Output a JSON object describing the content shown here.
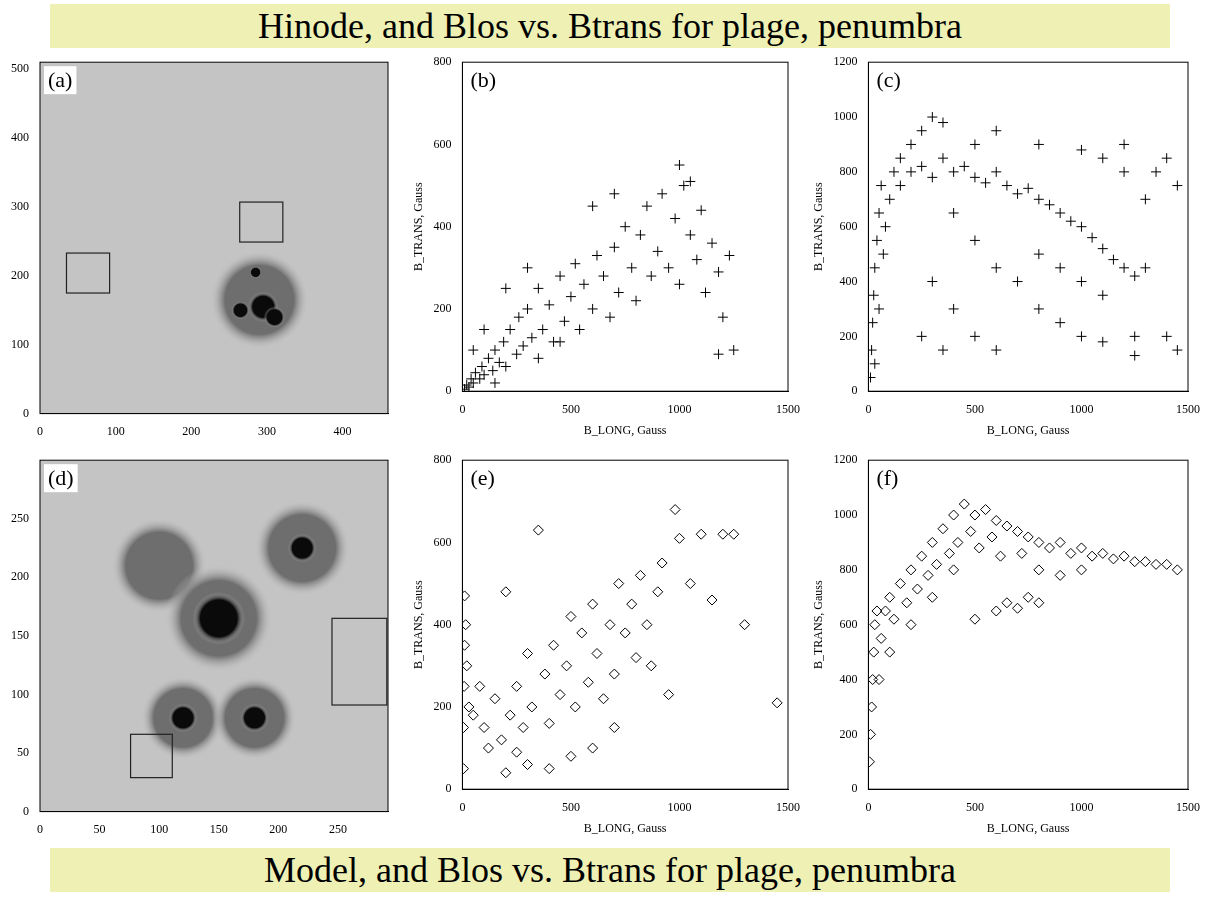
{
  "caption_top": "Hinode, and Blos vs. Btrans for plage, penumbra",
  "caption_bottom": "Model, and Blos vs. Btrans for plage, penumbra",
  "chart_data": [
    {
      "type": "image",
      "panel_label": "(a)",
      "xlim": [
        0,
        460
      ],
      "ylim": [
        0,
        510
      ],
      "xticks": [
        0,
        100,
        200,
        300,
        400
      ],
      "yticks": [
        0,
        100,
        200,
        300,
        400,
        500
      ],
      "penumbrae": [
        [
          290,
          165,
          65
        ]
      ],
      "umbrae": [
        [
          265,
          150,
          12
        ],
        [
          295,
          155,
          20
        ],
        [
          310,
          140,
          14
        ],
        [
          285,
          205,
          8
        ]
      ],
      "boxes": [
        [
          35,
          175,
          92,
          233
        ],
        [
          264,
          249,
          321,
          307
        ]
      ]
    },
    {
      "type": "scatter",
      "panel_label": "(b)",
      "marker": "plus",
      "color": "#000000",
      "xlabel": "B_LONG, Gauss",
      "ylabel": "B_TRANS, Gauss",
      "xlim": [
        0,
        1500
      ],
      "ylim": [
        0,
        800
      ],
      "xticks": [
        0,
        500,
        1000,
        1500
      ],
      "yticks": [
        0,
        200,
        400,
        600,
        800
      ],
      "points": [
        [
          10,
          5
        ],
        [
          20,
          15
        ],
        [
          30,
          10
        ],
        [
          40,
          30
        ],
        [
          50,
          20
        ],
        [
          60,
          45
        ],
        [
          80,
          30
        ],
        [
          90,
          60
        ],
        [
          100,
          40
        ],
        [
          120,
          80
        ],
        [
          140,
          50
        ],
        [
          150,
          100
        ],
        [
          170,
          70
        ],
        [
          190,
          120
        ],
        [
          200,
          60
        ],
        [
          220,
          150
        ],
        [
          250,
          90
        ],
        [
          260,
          180
        ],
        [
          280,
          110
        ],
        [
          300,
          200
        ],
        [
          320,
          130
        ],
        [
          350,
          250
        ],
        [
          370,
          150
        ],
        [
          400,
          210
        ],
        [
          420,
          120
        ],
        [
          450,
          280
        ],
        [
          470,
          170
        ],
        [
          500,
          230
        ],
        [
          520,
          310
        ],
        [
          540,
          150
        ],
        [
          560,
          260
        ],
        [
          600,
          200
        ],
        [
          620,
          330
        ],
        [
          650,
          280
        ],
        [
          680,
          180
        ],
        [
          700,
          350
        ],
        [
          720,
          240
        ],
        [
          750,
          400
        ],
        [
          780,
          300
        ],
        [
          800,
          220
        ],
        [
          820,
          380
        ],
        [
          850,
          450
        ],
        [
          870,
          280
        ],
        [
          900,
          340
        ],
        [
          920,
          480
        ],
        [
          950,
          300
        ],
        [
          980,
          420
        ],
        [
          1000,
          260
        ],
        [
          1020,
          500
        ],
        [
          1050,
          380
        ],
        [
          1080,
          320
        ],
        [
          1100,
          440
        ],
        [
          1120,
          240
        ],
        [
          1150,
          360
        ],
        [
          1180,
          290
        ],
        [
          1200,
          180
        ],
        [
          1230,
          330
        ],
        [
          1250,
          100
        ],
        [
          1180,
          90
        ],
        [
          1000,
          550
        ],
        [
          1050,
          510
        ],
        [
          600,
          450
        ],
        [
          700,
          480
        ],
        [
          300,
          300
        ],
        [
          200,
          250
        ],
        [
          100,
          150
        ],
        [
          50,
          100
        ],
        [
          350,
          80
        ],
        [
          450,
          120
        ],
        [
          150,
          20
        ]
      ]
    },
    {
      "type": "scatter",
      "panel_label": "(c)",
      "marker": "plus",
      "color": "#000000",
      "xlabel": "B_LONG, Gauss",
      "ylabel": "B_TRANS, Gauss",
      "xlim": [
        0,
        1500
      ],
      "ylim": [
        0,
        1200
      ],
      "xticks": [
        0,
        500,
        1000,
        1500
      ],
      "yticks": [
        0,
        200,
        400,
        600,
        800,
        1000,
        1200
      ],
      "points": [
        [
          10,
          50
        ],
        [
          15,
          150
        ],
        [
          20,
          250
        ],
        [
          25,
          350
        ],
        [
          30,
          450
        ],
        [
          40,
          550
        ],
        [
          50,
          650
        ],
        [
          60,
          750
        ],
        [
          30,
          100
        ],
        [
          50,
          300
        ],
        [
          70,
          500
        ],
        [
          80,
          600
        ],
        [
          100,
          700
        ],
        [
          120,
          800
        ],
        [
          150,
          850
        ],
        [
          200,
          900
        ],
        [
          250,
          950
        ],
        [
          300,
          1000
        ],
        [
          350,
          980
        ],
        [
          150,
          750
        ],
        [
          200,
          800
        ],
        [
          250,
          820
        ],
        [
          300,
          780
        ],
        [
          350,
          850
        ],
        [
          400,
          800
        ],
        [
          450,
          820
        ],
        [
          500,
          780
        ],
        [
          550,
          760
        ],
        [
          600,
          800
        ],
        [
          650,
          750
        ],
        [
          700,
          720
        ],
        [
          750,
          740
        ],
        [
          800,
          700
        ],
        [
          850,
          680
        ],
        [
          900,
          650
        ],
        [
          950,
          620
        ],
        [
          1000,
          600
        ],
        [
          1050,
          560
        ],
        [
          1100,
          520
        ],
        [
          1150,
          480
        ],
        [
          1200,
          450
        ],
        [
          1250,
          420
        ],
        [
          1300,
          700
        ],
        [
          1350,
          800
        ],
        [
          1400,
          850
        ],
        [
          1450,
          750
        ],
        [
          1200,
          800
        ],
        [
          1100,
          850
        ],
        [
          1000,
          880
        ],
        [
          800,
          900
        ],
        [
          600,
          950
        ],
        [
          500,
          900
        ],
        [
          400,
          650
        ],
        [
          500,
          550
        ],
        [
          600,
          450
        ],
        [
          700,
          400
        ],
        [
          800,
          300
        ],
        [
          900,
          250
        ],
        [
          1000,
          200
        ],
        [
          1100,
          180
        ],
        [
          1250,
          200
        ],
        [
          1400,
          200
        ],
        [
          300,
          400
        ],
        [
          400,
          300
        ],
        [
          500,
          200
        ],
        [
          600,
          150
        ],
        [
          250,
          200
        ],
        [
          350,
          150
        ],
        [
          800,
          500
        ],
        [
          900,
          450
        ],
        [
          1000,
          400
        ],
        [
          1100,
          350
        ],
        [
          1250,
          130
        ],
        [
          1200,
          900
        ],
        [
          1300,
          450
        ],
        [
          1450,
          150
        ]
      ]
    },
    {
      "type": "image",
      "panel_label": "(d)",
      "xlim": [
        0,
        292
      ],
      "ylim": [
        0,
        300
      ],
      "xticks": [
        0,
        50,
        100,
        150,
        200,
        250
      ],
      "yticks": [
        0,
        50,
        100,
        150,
        200,
        250
      ],
      "penumbrae": [
        [
          100,
          210,
          40
        ],
        [
          150,
          165,
          45
        ],
        [
          120,
          80,
          35
        ],
        [
          180,
          80,
          35
        ],
        [
          220,
          225,
          40
        ]
      ],
      "umbrae": [
        [
          150,
          165,
          22
        ],
        [
          120,
          80,
          12
        ],
        [
          180,
          80,
          12
        ],
        [
          220,
          225,
          12
        ]
      ],
      "boxes": [
        [
          76,
          29,
          111,
          66
        ],
        [
          245,
          91,
          291,
          165
        ]
      ]
    },
    {
      "type": "scatter",
      "panel_label": "(e)",
      "marker": "diamond",
      "color": "#000000",
      "xlabel": "B_LONG, Gauss",
      "ylabel": "B_TRANS, Gauss",
      "xlim": [
        0,
        1500
      ],
      "ylim": [
        0,
        800
      ],
      "xticks": [
        0,
        500,
        1000,
        1500
      ],
      "yticks": [
        0,
        200,
        400,
        600,
        800
      ],
      "points": [
        [
          5,
          50
        ],
        [
          5,
          150
        ],
        [
          8,
          250
        ],
        [
          10,
          350
        ],
        [
          10,
          470
        ],
        [
          15,
          400
        ],
        [
          20,
          300
        ],
        [
          30,
          200
        ],
        [
          50,
          180
        ],
        [
          80,
          250
        ],
        [
          100,
          150
        ],
        [
          120,
          100
        ],
        [
          150,
          220
        ],
        [
          180,
          120
        ],
        [
          200,
          480
        ],
        [
          220,
          180
        ],
        [
          250,
          250
        ],
        [
          280,
          150
        ],
        [
          300,
          330
        ],
        [
          320,
          200
        ],
        [
          350,
          630
        ],
        [
          380,
          280
        ],
        [
          400,
          160
        ],
        [
          420,
          350
        ],
        [
          450,
          230
        ],
        [
          480,
          300
        ],
        [
          500,
          420
        ],
        [
          520,
          200
        ],
        [
          550,
          380
        ],
        [
          580,
          260
        ],
        [
          600,
          450
        ],
        [
          620,
          330
        ],
        [
          650,
          220
        ],
        [
          680,
          400
        ],
        [
          700,
          280
        ],
        [
          720,
          500
        ],
        [
          750,
          380
        ],
        [
          780,
          450
        ],
        [
          800,
          320
        ],
        [
          820,
          520
        ],
        [
          850,
          400
        ],
        [
          870,
          300
        ],
        [
          900,
          480
        ],
        [
          920,
          550
        ],
        [
          950,
          230
        ],
        [
          980,
          680
        ],
        [
          1000,
          610
        ],
        [
          1050,
          500
        ],
        [
          1100,
          620
        ],
        [
          1150,
          460
        ],
        [
          1200,
          620
        ],
        [
          1250,
          620
        ],
        [
          1300,
          400
        ],
        [
          1450,
          210
        ],
        [
          200,
          40
        ],
        [
          300,
          60
        ],
        [
          400,
          50
        ],
        [
          500,
          80
        ],
        [
          600,
          100
        ],
        [
          700,
          150
        ],
        [
          250,
          90
        ]
      ]
    },
    {
      "type": "scatter",
      "panel_label": "(f)",
      "marker": "diamond",
      "color": "#000000",
      "xlabel": "B_LONG, Gauss",
      "ylabel": "B_TRANS, Gauss",
      "xlim": [
        0,
        1500
      ],
      "ylim": [
        0,
        1200
      ],
      "xticks": [
        0,
        500,
        1000,
        1500
      ],
      "yticks": [
        0,
        200,
        400,
        600,
        800,
        1000,
        1200
      ],
      "points": [
        [
          5,
          100
        ],
        [
          10,
          200
        ],
        [
          15,
          300
        ],
        [
          20,
          400
        ],
        [
          25,
          500
        ],
        [
          30,
          600
        ],
        [
          40,
          650
        ],
        [
          60,
          550
        ],
        [
          80,
          650
        ],
        [
          100,
          700
        ],
        [
          120,
          620
        ],
        [
          150,
          750
        ],
        [
          180,
          680
        ],
        [
          200,
          800
        ],
        [
          230,
          730
        ],
        [
          250,
          850
        ],
        [
          280,
          780
        ],
        [
          300,
          900
        ],
        [
          320,
          820
        ],
        [
          350,
          950
        ],
        [
          380,
          860
        ],
        [
          400,
          1000
        ],
        [
          420,
          900
        ],
        [
          450,
          1040
        ],
        [
          480,
          940
        ],
        [
          500,
          1000
        ],
        [
          520,
          880
        ],
        [
          550,
          1020
        ],
        [
          580,
          920
        ],
        [
          600,
          980
        ],
        [
          620,
          850
        ],
        [
          650,
          960
        ],
        [
          700,
          940
        ],
        [
          720,
          860
        ],
        [
          750,
          920
        ],
        [
          800,
          900
        ],
        [
          850,
          880
        ],
        [
          900,
          900
        ],
        [
          950,
          860
        ],
        [
          1000,
          880
        ],
        [
          1050,
          850
        ],
        [
          1100,
          860
        ],
        [
          1150,
          840
        ],
        [
          1200,
          850
        ],
        [
          1250,
          830
        ],
        [
          1300,
          830
        ],
        [
          1350,
          820
        ],
        [
          1400,
          820
        ],
        [
          1450,
          800
        ],
        [
          600,
          650
        ],
        [
          650,
          680
        ],
        [
          700,
          660
        ],
        [
          750,
          700
        ],
        [
          800,
          680
        ],
        [
          500,
          620
        ],
        [
          400,
          800
        ],
        [
          300,
          700
        ],
        [
          200,
          600
        ],
        [
          100,
          500
        ],
        [
          50,
          400
        ],
        [
          800,
          800
        ],
        [
          900,
          780
        ],
        [
          1000,
          800
        ]
      ]
    }
  ]
}
